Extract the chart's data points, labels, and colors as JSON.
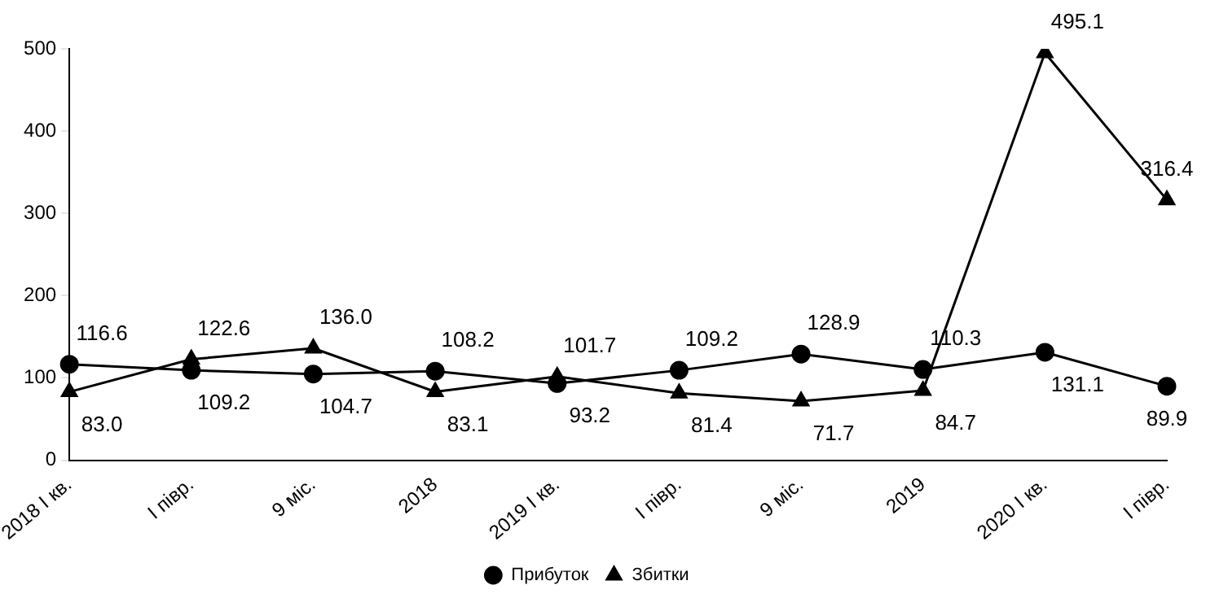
{
  "chart_data": {
    "type": "line",
    "categories": [
      "2018 І кв.",
      "І півр.",
      "9 міс.",
      "2018",
      "2019 І кв.",
      "І півр.",
      "9 міс.",
      "2019",
      "2020 І кв.",
      "І півр."
    ],
    "series": [
      {
        "name": "Прибуток",
        "color": "#000000",
        "marker": "circle",
        "values": [
          116.6,
          109.2,
          104.7,
          108.2,
          93.2,
          109.2,
          128.9,
          110.3,
          131.1,
          89.9
        ],
        "value_labels": [
          "116.6",
          "109.2",
          "104.7",
          "108.2",
          "93.2",
          "109.2",
          "128.9",
          "110.3",
          "131.1",
          "89.9"
        ]
      },
      {
        "name": "Збитки",
        "color": "#000000",
        "marker": "triangle",
        "values": [
          83.0,
          122.6,
          136.0,
          83.1,
          101.7,
          81.4,
          71.7,
          84.7,
          495.1,
          316.4
        ],
        "value_labels": [
          "83.0",
          "122.6",
          "136.0",
          "83.1",
          "101.7",
          "81.4",
          "71.7",
          "84.7",
          "495.1",
          "316.4"
        ]
      }
    ],
    "ylim": [
      0,
      500
    ],
    "yticks": [
      0,
      100,
      200,
      300,
      400,
      500
    ],
    "grid": false,
    "legend": "bottom",
    "line_style": "solid"
  }
}
